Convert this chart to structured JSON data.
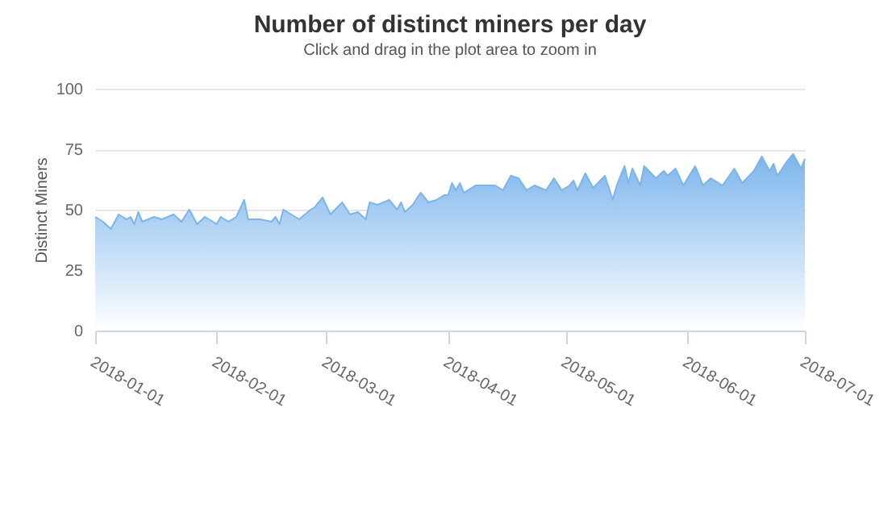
{
  "chart_data": {
    "type": "area",
    "title": "Number of distinct miners per day",
    "subtitle": "Click and drag in the plot area to zoom in",
    "ylabel": "Distinct Miners",
    "x": [
      "2018-01-01",
      "2018-01-03",
      "2018-01-05",
      "2018-01-07",
      "2018-01-09",
      "2018-01-10",
      "2018-01-11",
      "2018-01-12",
      "2018-01-13",
      "2018-01-16",
      "2018-01-18",
      "2018-01-21",
      "2018-01-23",
      "2018-01-25",
      "2018-01-27",
      "2018-01-29",
      "2018-02-01",
      "2018-02-02",
      "2018-02-04",
      "2018-02-06",
      "2018-02-08",
      "2018-02-09",
      "2018-02-12",
      "2018-02-15",
      "2018-02-16",
      "2018-02-17",
      "2018-02-18",
      "2018-02-20",
      "2018-02-22",
      "2018-02-25",
      "2018-02-26",
      "2018-02-28",
      "2018-03-02",
      "2018-03-05",
      "2018-03-07",
      "2018-03-09",
      "2018-03-11",
      "2018-03-12",
      "2018-03-14",
      "2018-03-17",
      "2018-03-19",
      "2018-03-20",
      "2018-03-21",
      "2018-03-23",
      "2018-03-25",
      "2018-03-27",
      "2018-03-29",
      "2018-03-31",
      "2018-04-01",
      "2018-04-02",
      "2018-04-03",
      "2018-04-04",
      "2018-04-05",
      "2018-04-08",
      "2018-04-13",
      "2018-04-15",
      "2018-04-17",
      "2018-04-19",
      "2018-04-21",
      "2018-04-23",
      "2018-04-26",
      "2018-04-28",
      "2018-04-30",
      "2018-05-02",
      "2018-05-03",
      "2018-05-04",
      "2018-05-06",
      "2018-05-08",
      "2018-05-11",
      "2018-05-13",
      "2018-05-14",
      "2018-05-16",
      "2018-05-17",
      "2018-05-18",
      "2018-05-20",
      "2018-05-21",
      "2018-05-24",
      "2018-05-26",
      "2018-05-27",
      "2018-05-29",
      "2018-05-31",
      "2018-06-03",
      "2018-06-05",
      "2018-06-07",
      "2018-06-10",
      "2018-06-13",
      "2018-06-15",
      "2018-06-18",
      "2018-06-20",
      "2018-06-22",
      "2018-06-23",
      "2018-06-24",
      "2018-06-26",
      "2018-06-28",
      "2018-06-30",
      "2018-07-01"
    ],
    "series": [
      {
        "color": "#7cb5ec",
        "values": [
          47,
          45,
          42,
          48,
          46,
          47,
          44,
          49,
          45,
          47,
          46,
          48,
          45,
          50,
          44,
          47,
          44,
          47,
          45,
          47,
          54,
          46,
          46,
          45,
          47,
          44,
          50,
          48,
          46,
          50,
          51,
          55,
          48,
          53,
          48,
          49,
          46,
          53,
          52,
          54,
          50,
          53,
          49,
          52,
          57,
          53,
          54,
          56,
          56,
          61,
          58,
          61,
          57,
          60,
          60,
          58,
          64,
          63,
          58,
          60,
          58,
          63,
          58,
          60,
          62,
          58,
          65,
          59,
          64,
          54,
          60,
          68,
          61,
          67,
          60,
          68,
          63,
          66,
          64,
          67,
          60,
          68,
          60,
          63,
          60,
          67,
          61,
          66,
          72,
          66,
          69,
          64,
          69,
          73,
          67,
          71
        ]
      }
    ],
    "xlim": [
      "2018-01-01",
      "2018-07-01"
    ],
    "xticks": [
      "2018-01-01",
      "2018-02-01",
      "2018-03-01",
      "2018-04-01",
      "2018-05-01",
      "2018-06-01",
      "2018-07-01"
    ],
    "ylim": [
      0,
      100
    ],
    "yticks": [
      0,
      25,
      50,
      75,
      100
    ],
    "grid": "y"
  }
}
